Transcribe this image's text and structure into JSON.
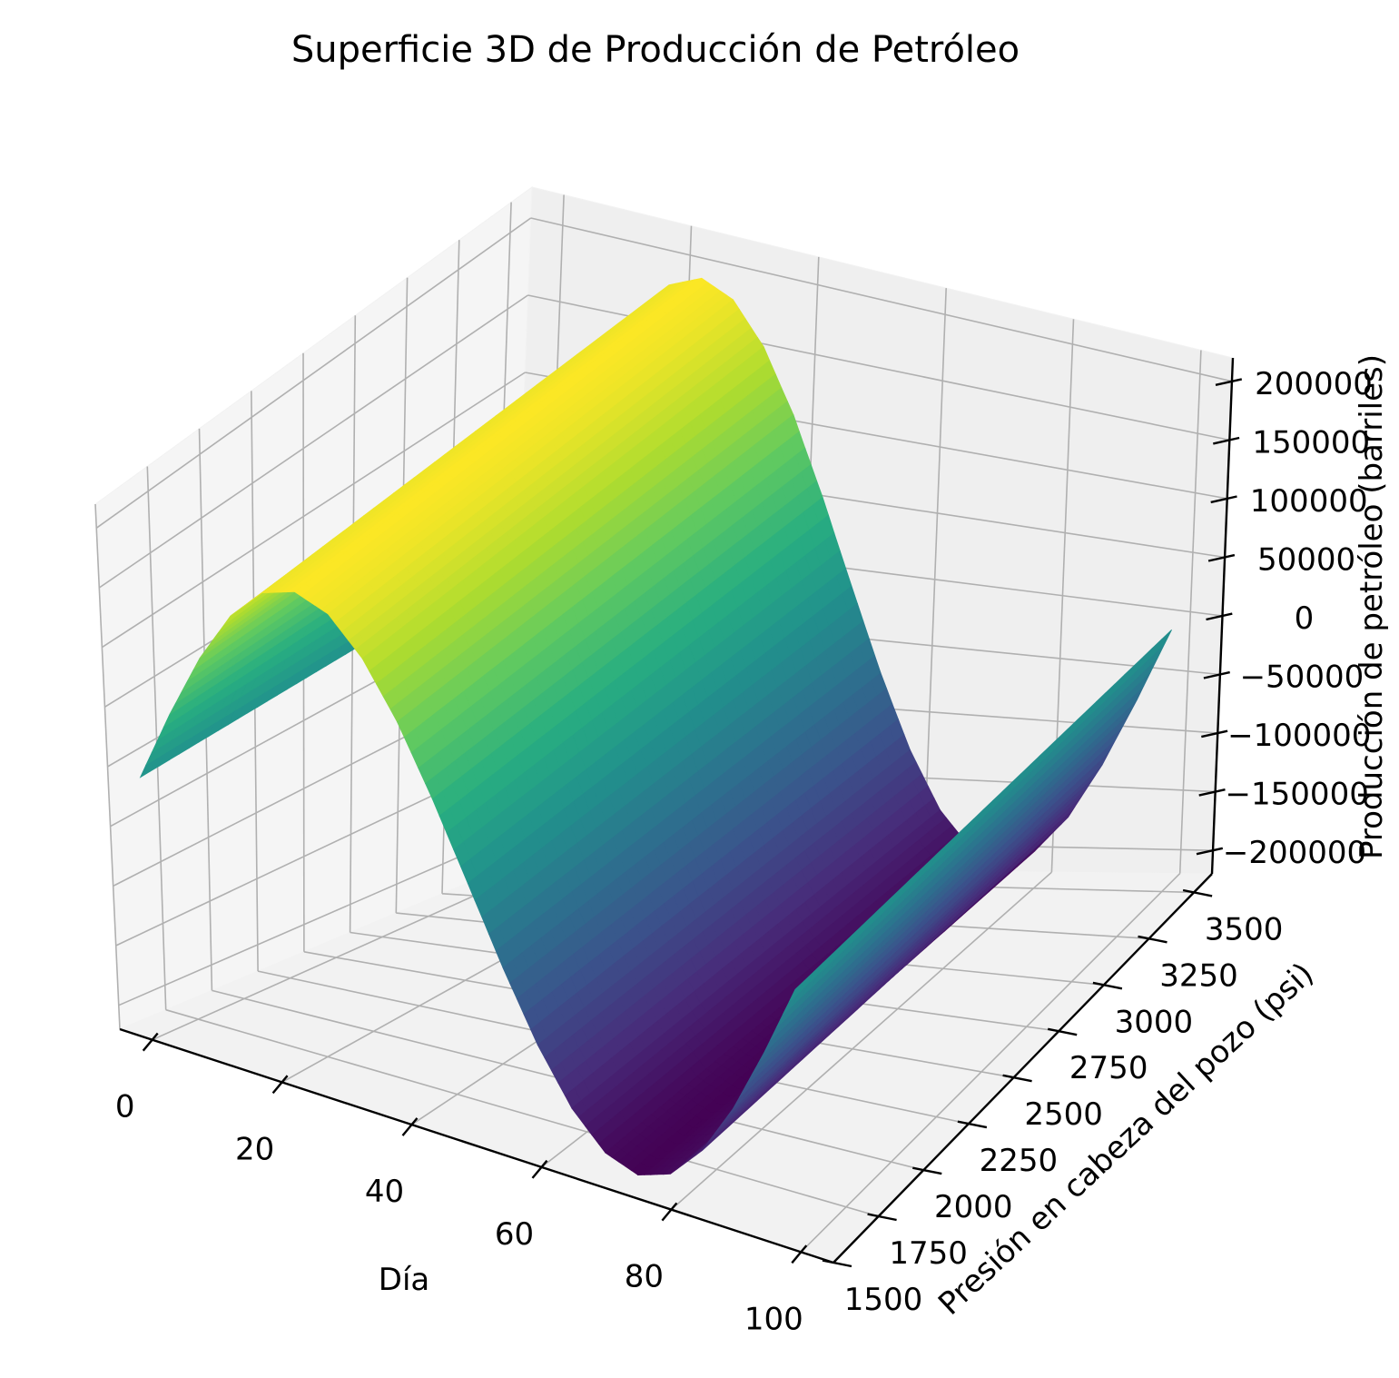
{
  "chart_data": {
    "type": "surface3d",
    "title": "Superficie 3D de Producción de Petróleo",
    "xlabel": "Día",
    "ylabel": "Presión en cabeza del pozo (psi)",
    "zlabel": "Producción de petróleo (barriles)",
    "colormap": "viridis",
    "colormap_stops": [
      "#440154",
      "#472d7b",
      "#3b528b",
      "#2c728e",
      "#21918c",
      "#28ae80",
      "#5ec962",
      "#addc30",
      "#fde725"
    ],
    "xlim": [
      -5,
      105
    ],
    "ylim": [
      1500,
      3600
    ],
    "zlim": [
      -220000,
      220000
    ],
    "x_ticks": [
      0,
      20,
      40,
      60,
      80,
      100
    ],
    "y_ticks": [
      1500,
      1750,
      2000,
      2250,
      2500,
      2750,
      3000,
      3250,
      3500
    ],
    "z_ticks": [
      -200000,
      -150000,
      -100000,
      -50000,
      0,
      50000,
      100000,
      150000,
      200000
    ],
    "x_tick_labels": [
      "0",
      "20",
      "40",
      "60",
      "80",
      "100"
    ],
    "y_tick_labels": [
      "1500",
      "1750",
      "2000",
      "2250",
      "2500",
      "2750",
      "3000",
      "3250",
      "3500"
    ],
    "z_tick_labels": [
      "−200000",
      "−150000",
      "−100000",
      "−50000",
      "0",
      "50000",
      "100000",
      "150000",
      "200000"
    ],
    "x_range": [
      0,
      100
    ],
    "y_range": [
      1500,
      3500
    ],
    "z_min": -200000,
    "z_max": 200000,
    "grid": true,
    "surface_profile": {
      "description": "production varies with day as a sine wave, constant across pressure",
      "x": [
        0,
        5,
        10,
        15,
        20,
        25,
        30,
        35,
        40,
        45,
        50,
        55,
        60,
        65,
        70,
        75,
        80,
        85,
        90,
        95,
        100
      ],
      "z": [
        0,
        61800,
        117600,
        161800,
        190200,
        200000,
        190200,
        161800,
        117600,
        61800,
        0,
        -61800,
        -117600,
        -161800,
        -190200,
        -200000,
        -190200,
        -161800,
        -117600,
        -61800,
        0
      ]
    }
  }
}
